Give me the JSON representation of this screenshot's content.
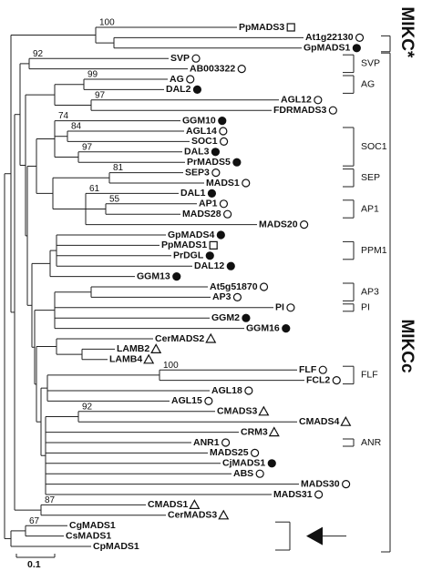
{
  "leaves": [
    {
      "label": "PpMADS3",
      "marker": "open-square"
    },
    {
      "label": "At1g22130",
      "marker": "open-circle"
    },
    {
      "label": "GpMADS1",
      "marker": "filled-circle"
    },
    {
      "label": "SVP",
      "marker": "open-circle"
    },
    {
      "label": "AB003322",
      "marker": "open-circle"
    },
    {
      "label": "AG",
      "marker": "open-circle"
    },
    {
      "label": "DAL2",
      "marker": "filled-circle"
    },
    {
      "label": "AGL12",
      "marker": "open-circle"
    },
    {
      "label": "FDRMADS3",
      "marker": "open-circle"
    },
    {
      "label": "GGM10",
      "marker": "filled-circle"
    },
    {
      "label": "AGL14",
      "marker": "open-circle"
    },
    {
      "label": "SOC1",
      "marker": "open-circle"
    },
    {
      "label": "DAL3",
      "marker": "filled-circle"
    },
    {
      "label": "PrMADS5",
      "marker": "filled-circle"
    },
    {
      "label": "SEP3",
      "marker": "open-circle"
    },
    {
      "label": "MADS1",
      "marker": "open-circle"
    },
    {
      "label": "DAL1",
      "marker": "filled-circle"
    },
    {
      "label": "AP1",
      "marker": "open-circle"
    },
    {
      "label": "MADS28",
      "marker": "open-circle"
    },
    {
      "label": "MADS20",
      "marker": "open-circle"
    },
    {
      "label": "GpMADS4",
      "marker": "filled-circle"
    },
    {
      "label": "PpMADS1",
      "marker": "open-square"
    },
    {
      "label": "PrDGL",
      "marker": "filled-circle"
    },
    {
      "label": "DAL12",
      "marker": "filled-circle"
    },
    {
      "label": "GGM13",
      "marker": "filled-circle"
    },
    {
      "label": "At5g51870",
      "marker": "open-circle"
    },
    {
      "label": "AP3",
      "marker": "open-circle"
    },
    {
      "label": "PI",
      "marker": "open-circle"
    },
    {
      "label": "GGM2",
      "marker": "filled-circle"
    },
    {
      "label": "GGM16",
      "marker": "filled-circle"
    },
    {
      "label": "CerMADS2",
      "marker": "open-triangle"
    },
    {
      "label": "LAMB2",
      "marker": "open-triangle"
    },
    {
      "label": "LAMB4",
      "marker": "open-triangle"
    },
    {
      "label": "FLF",
      "marker": "open-circle"
    },
    {
      "label": "FCL2",
      "marker": "open-circle"
    },
    {
      "label": "AGL18",
      "marker": "open-circle"
    },
    {
      "label": "AGL15",
      "marker": "open-circle"
    },
    {
      "label": "CMADS3",
      "marker": "open-triangle"
    },
    {
      "label": "CMADS4",
      "marker": "open-triangle"
    },
    {
      "label": "CRM3",
      "marker": "open-triangle"
    },
    {
      "label": "ANR1",
      "marker": "open-circle"
    },
    {
      "label": "MADS25",
      "marker": "open-circle"
    },
    {
      "label": "CjMADS1",
      "marker": "filled-circle"
    },
    {
      "label": "ABS",
      "marker": "open-circle"
    },
    {
      "label": "MADS30",
      "marker": "open-circle"
    },
    {
      "label": "MADS31",
      "marker": "open-circle"
    },
    {
      "label": "CMADS1",
      "marker": "open-triangle"
    },
    {
      "label": "CerMADS3",
      "marker": "open-triangle"
    },
    {
      "label": "CgMADS1",
      "marker": "none"
    },
    {
      "label": "CsMADS1",
      "marker": "none"
    },
    {
      "label": "CpMADS1",
      "marker": "none"
    }
  ],
  "bootstrap": [
    100,
    92,
    99,
    97,
    84,
    74,
    97,
    81,
    61,
    55,
    100,
    92,
    87,
    67
  ],
  "groups": [
    "SVP",
    "AG",
    "SOC1",
    "SEP",
    "AP1",
    "PPM1",
    "AP3",
    "PI",
    "FLF",
    "ANR"
  ],
  "clades": [
    "MIKC*",
    "MIKCc"
  ],
  "scale_label": "0.1"
}
